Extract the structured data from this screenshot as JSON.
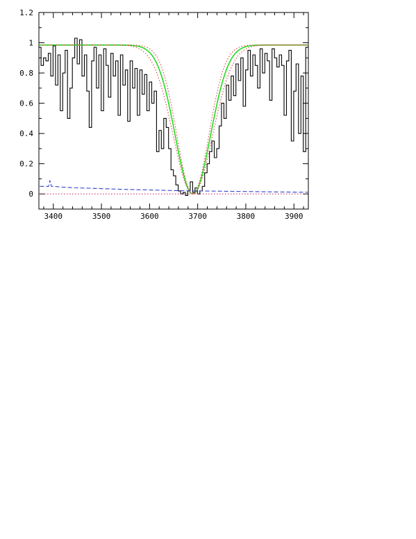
{
  "chart_data": {
    "type": "line",
    "title": "",
    "xlabel": "",
    "ylabel": "",
    "xlim": [
      3370,
      3930
    ],
    "ylim": [
      -0.1,
      1.2
    ],
    "x_ticks": [
      3400,
      3500,
      3600,
      3700,
      3800,
      3900
    ],
    "y_ticks": [
      0,
      0.2,
      0.4,
      0.6,
      0.8,
      1,
      1.2
    ],
    "x_tick_labels": [
      "3400",
      "3500",
      "3600",
      "3700",
      "3800",
      "3900"
    ],
    "y_tick_labels": [
      "0",
      "0.2",
      "0.4",
      "0.6",
      "0.8",
      "1",
      "1.2"
    ],
    "grid": false,
    "legend": "none",
    "series": [
      {
        "style": "step",
        "color": "#000000",
        "dash": "solid",
        "x": [
          3372,
          3377,
          3382,
          3387,
          3392,
          3397,
          3402,
          3407,
          3412,
          3417,
          3422,
          3427,
          3432,
          3437,
          3442,
          3447,
          3452,
          3457,
          3462,
          3467,
          3472,
          3477,
          3482,
          3487,
          3492,
          3497,
          3502,
          3507,
          3512,
          3517,
          3522,
          3527,
          3532,
          3537,
          3542,
          3547,
          3552,
          3557,
          3562,
          3567,
          3572,
          3577,
          3582,
          3587,
          3592,
          3597,
          3602,
          3607,
          3612,
          3617,
          3622,
          3627,
          3632,
          3637,
          3642,
          3647,
          3652,
          3657,
          3662,
          3667,
          3672,
          3677,
          3682,
          3687,
          3692,
          3697,
          3702,
          3707,
          3712,
          3717,
          3722,
          3727,
          3732,
          3737,
          3742,
          3747,
          3752,
          3757,
          3762,
          3767,
          3772,
          3777,
          3782,
          3787,
          3792,
          3797,
          3802,
          3807,
          3812,
          3817,
          3822,
          3827,
          3832,
          3837,
          3842,
          3847,
          3852,
          3857,
          3862,
          3867,
          3872,
          3877,
          3882,
          3887,
          3892,
          3897,
          3902,
          3907,
          3912,
          3917,
          3922,
          3927
        ],
        "y": [
          0.97,
          0.85,
          0.9,
          0.88,
          0.93,
          0.78,
          0.98,
          0.72,
          0.92,
          0.55,
          0.8,
          0.95,
          0.5,
          0.7,
          0.9,
          1.03,
          0.86,
          1.02,
          0.78,
          0.92,
          0.68,
          0.44,
          0.88,
          0.97,
          0.7,
          0.92,
          0.55,
          0.96,
          0.85,
          0.64,
          0.93,
          0.78,
          0.88,
          0.52,
          0.92,
          0.72,
          0.82,
          0.48,
          0.88,
          0.7,
          0.83,
          0.52,
          0.82,
          0.66,
          0.79,
          0.55,
          0.74,
          0.6,
          0.68,
          0.28,
          0.42,
          0.3,
          0.5,
          0.44,
          0.3,
          0.16,
          0.12,
          0.06,
          0.02,
          0.0,
          0.01,
          -0.01,
          0.02,
          0.08,
          0.01,
          0.04,
          0.0,
          0.02,
          0.05,
          0.14,
          0.2,
          0.28,
          0.35,
          0.24,
          0.3,
          0.45,
          0.6,
          0.5,
          0.72,
          0.62,
          0.78,
          0.65,
          0.86,
          0.75,
          0.9,
          0.58,
          0.82,
          0.95,
          0.78,
          0.92,
          0.85,
          0.7,
          0.96,
          0.8,
          0.93,
          0.88,
          0.62,
          0.96,
          0.9,
          0.84,
          0.92,
          0.85,
          0.52,
          0.88,
          0.95,
          0.35,
          0.68,
          0.86,
          0.4,
          0.78,
          0.28,
          0.97
        ]
      },
      {
        "style": "smooth",
        "color": "#22dd22",
        "dash": "solid",
        "center": 3690,
        "depth": 1.0,
        "width": 52,
        "continuum": 0.985
      },
      {
        "style": "smooth",
        "color": "#e04040",
        "dash": "dotted",
        "center": 3690,
        "depth": 1.0,
        "width": 58,
        "continuum": 0.985
      },
      {
        "style": "smooth",
        "color": "#e04040",
        "dash": "dotted",
        "center": 3690,
        "depth": 1.0,
        "width": 47,
        "continuum": 0.985
      },
      {
        "style": "line",
        "color": "#3344cc",
        "dash": "dashed",
        "x": [
          3372,
          3385,
          3390,
          3393,
          3396,
          3400,
          3420,
          3450,
          3500,
          3550,
          3600,
          3650,
          3700,
          3750,
          3800,
          3850,
          3900,
          3930
        ],
        "y": [
          0.05,
          0.05,
          0.05,
          0.09,
          0.05,
          0.05,
          0.045,
          0.04,
          0.035,
          0.03,
          0.027,
          0.022,
          0.02,
          0.018,
          0.016,
          0.014,
          0.012,
          0.011
        ]
      },
      {
        "style": "line",
        "color": "#cc3366",
        "dash": "dotted",
        "x": [
          3370,
          3930
        ],
        "y": [
          0.0,
          0.0
        ]
      }
    ]
  }
}
